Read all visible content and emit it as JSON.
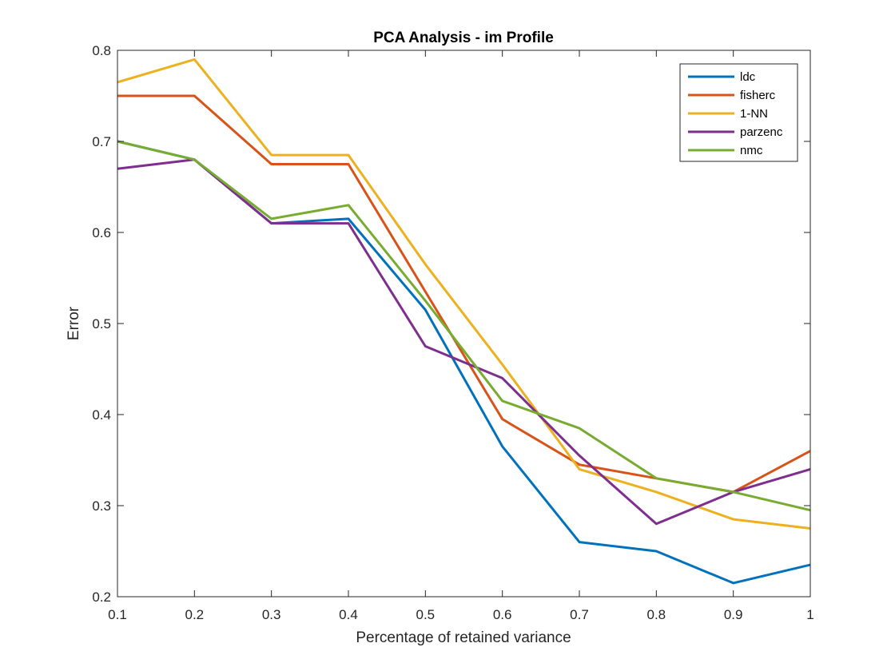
{
  "chart_data": {
    "type": "line",
    "title": "PCA Analysis - im Profile",
    "xlabel": "Percentage of retained variance",
    "ylabel": "Error",
    "xlim": [
      0.1,
      1
    ],
    "ylim": [
      0.2,
      0.8
    ],
    "x": [
      0.1,
      0.2,
      0.3,
      0.4,
      0.5,
      0.6,
      0.7,
      0.8,
      0.9,
      1.0
    ],
    "x_ticks": [
      "0.1",
      "0.2",
      "0.3",
      "0.4",
      "0.5",
      "0.6",
      "0.7",
      "0.8",
      "0.9",
      "1"
    ],
    "y_ticks": [
      "0.2",
      "0.3",
      "0.4",
      "0.5",
      "0.6",
      "0.7",
      "0.8"
    ],
    "grid": false,
    "legend_position": "top-right",
    "series": [
      {
        "name": "ldc",
        "color": "#0072BD",
        "values": [
          0.7,
          0.68,
          0.61,
          0.615,
          0.515,
          0.365,
          0.26,
          0.25,
          0.215,
          0.235
        ]
      },
      {
        "name": "fisherc",
        "color": "#D95319",
        "values": [
          0.75,
          0.75,
          0.675,
          0.675,
          0.535,
          0.395,
          0.345,
          0.33,
          0.315,
          0.36
        ]
      },
      {
        "name": "1-NN",
        "color": "#EDB120",
        "values": [
          0.765,
          0.79,
          0.685,
          0.685,
          0.565,
          0.455,
          0.34,
          0.315,
          0.285,
          0.275
        ]
      },
      {
        "name": "parzenc",
        "color": "#7E2F8E",
        "values": [
          0.67,
          0.68,
          0.61,
          0.61,
          0.475,
          0.44,
          0.355,
          0.28,
          0.315,
          0.34
        ]
      },
      {
        "name": "nmc",
        "color": "#77AC30",
        "values": [
          0.7,
          0.68,
          0.615,
          0.63,
          0.525,
          0.415,
          0.385,
          0.33,
          0.315,
          0.295
        ]
      }
    ]
  }
}
